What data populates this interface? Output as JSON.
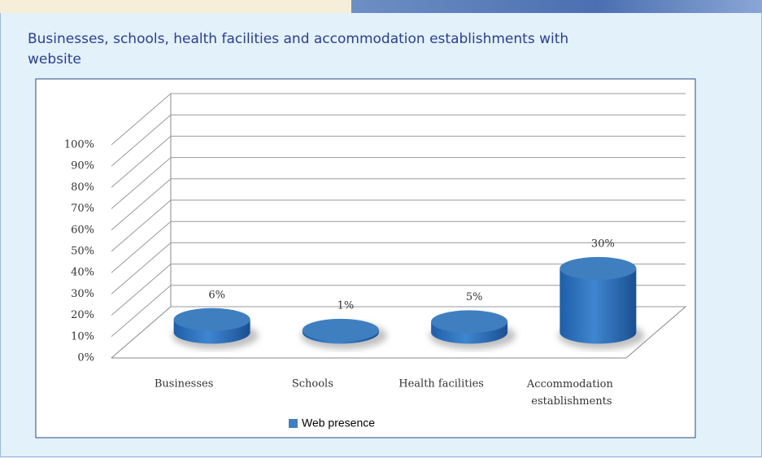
{
  "chart_data": {
    "type": "bar",
    "title": "Businesses, schools, health facilities and accommodation establishments with website",
    "categories": [
      "Businesses",
      "Schools",
      "Health facilities",
      "Accommodation establishments"
    ],
    "series": [
      {
        "name": "Web presence",
        "color": "#3f7fc0",
        "values": [
          6,
          1,
          5,
          30
        ],
        "value_labels": [
          "6%",
          "1%",
          "5%",
          "30%"
        ]
      }
    ],
    "ylim": [
      0,
      100
    ],
    "yticks": [
      {
        "value": 0,
        "label": "0%"
      },
      {
        "value": 10,
        "label": "10%"
      },
      {
        "value": 20,
        "label": "20%"
      },
      {
        "value": 30,
        "label": "30%"
      },
      {
        "value": 40,
        "label": "40%"
      },
      {
        "value": 50,
        "label": "50%"
      },
      {
        "value": 60,
        "label": "60%"
      },
      {
        "value": 70,
        "label": "70%"
      },
      {
        "value": 80,
        "label": "80%"
      },
      {
        "value": 90,
        "label": "90%"
      },
      {
        "value": 100,
        "label": "100%"
      }
    ],
    "grid": true,
    "legend": "bottom"
  }
}
